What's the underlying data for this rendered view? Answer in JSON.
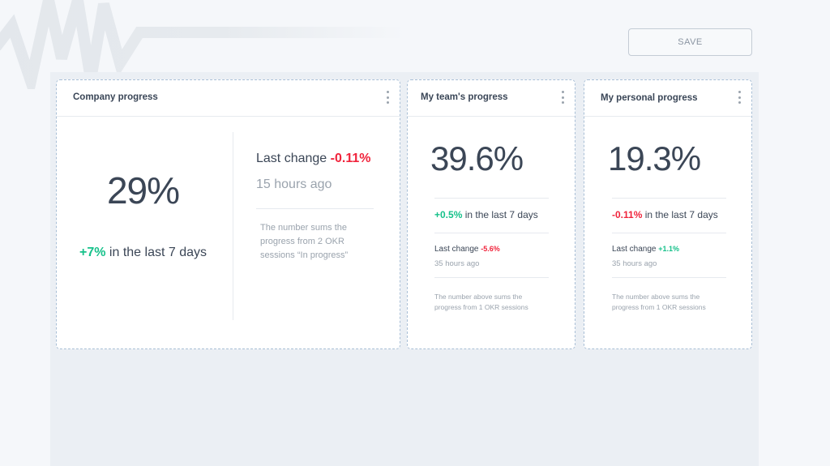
{
  "toolbar": {
    "save_label": "SAVE"
  },
  "colors": {
    "positive": "#16c18a",
    "negative": "#f0243c",
    "text": "#3b4656",
    "muted": "#9aa3ad"
  },
  "icons": {
    "card_menu": "kebab-menu-icon"
  },
  "cards": {
    "company": {
      "title": "Company progress",
      "value": "29%",
      "trend_delta": "+7%",
      "trend_text": "in the last 7 days",
      "last_change_label": "Last change",
      "last_change_value": "-0.11%",
      "last_change_ago": "15 hours ago",
      "note": "The number sums the progress from 2 OKR sessions “In progress”"
    },
    "team": {
      "title": "My team's progress",
      "value": "39.6%",
      "trend_delta": "+0.5%",
      "trend_text": "in the last 7 days",
      "last_change_label": "Last change",
      "last_change_value": "-5.6%",
      "last_change_ago": "35 hours ago",
      "note": "The number above sums the progress from 1 OKR sessions"
    },
    "personal": {
      "title": "My personal progress",
      "value": "19.3%",
      "trend_delta": "-0.11%",
      "trend_text": "in the last 7 days",
      "last_change_label": "Last change",
      "last_change_value": "+1.1%",
      "last_change_ago": "35 hours ago",
      "note": "The number above sums the progress from 1 OKR sessions"
    }
  }
}
